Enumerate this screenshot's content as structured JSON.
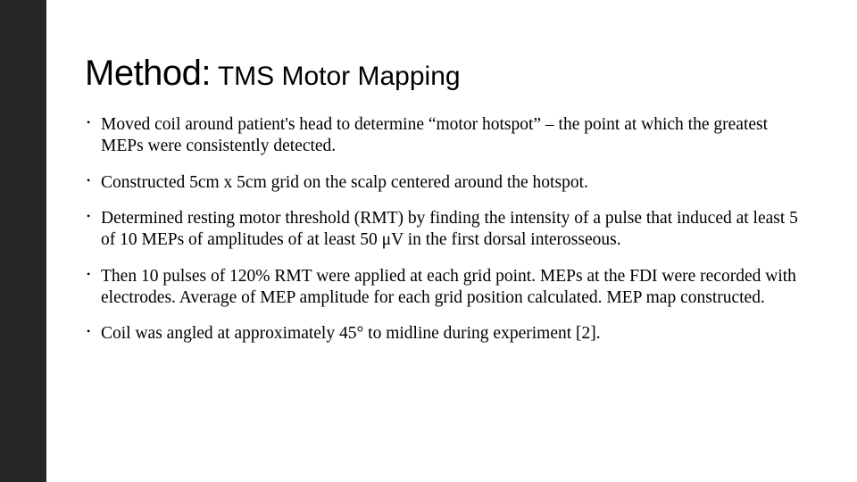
{
  "slide": {
    "title_main": "Method:",
    "title_sub": " TMS Motor Mapping",
    "bullets": [
      "Moved coil around patient's head to determine “motor hotspot” – the point at which the greatest MEPs were consistently detected.",
      "Constructed 5cm x 5cm grid on the scalp centered around the hotspot.",
      "Determined resting motor threshold (RMT) by finding the intensity of a pulse that induced at least 5 of 10 MEPs of amplitudes of at least 50 μV in the first dorsal interosseous.",
      "Then 10 pulses of 120% RMT were applied at each grid point. MEPs at the FDI were recorded with electrodes. Average of MEP amplitude for each grid position calculated. MEP map constructed.",
      "Coil was angled at approximately 45° to midline during experiment [2]."
    ]
  },
  "style": {
    "sidebar_color": "#262626",
    "background_color": "#ffffff",
    "text_color": "#000000",
    "title_main_fontsize": 40,
    "title_sub_fontsize": 30,
    "body_fontsize": 19.5,
    "title_font": "Arial",
    "body_font": "Georgia"
  }
}
